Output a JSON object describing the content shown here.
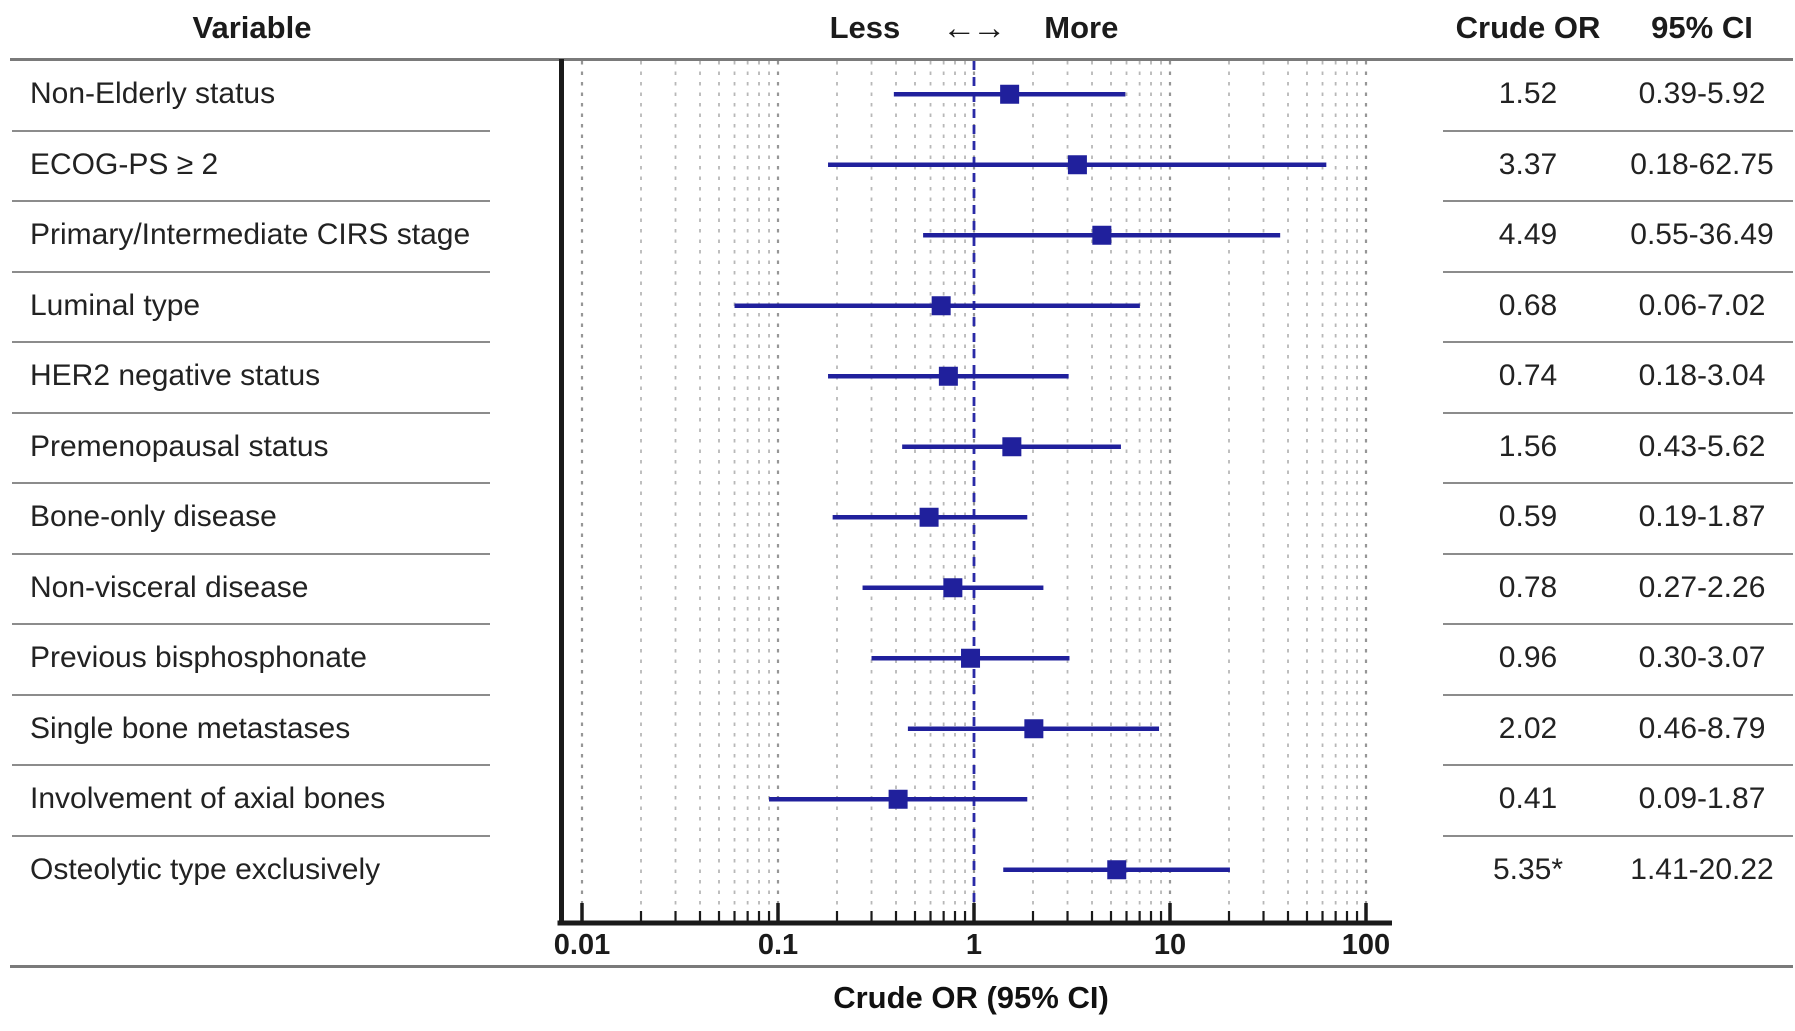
{
  "header": {
    "variable_col": "Variable",
    "less_label": "Less",
    "arrows": "←→",
    "more_label": "More",
    "crude_or_col": "Crude OR",
    "ci_col": "95% CI"
  },
  "chart_data": {
    "type": "scatter",
    "variant": "forest-plot",
    "xlabel": "Crude OR (95% CI)",
    "xscale": "log",
    "xlim": [
      0.01,
      100
    ],
    "xticks": [
      0.01,
      0.1,
      1,
      10,
      100
    ],
    "xtick_labels": [
      "0.01",
      "0.1",
      "1",
      "10",
      "100"
    ],
    "reference_line": 1,
    "grid": "dashed-vertical-log-minor-and-major",
    "legend_position": "none",
    "rows": [
      {
        "variable": "Non-Elderly status",
        "or": 1.52,
        "ci_low": 0.39,
        "ci_high": 5.92,
        "or_label": "1.52",
        "ci_label": "0.39-5.92"
      },
      {
        "variable": "ECOG-PS ≥ 2",
        "or": 3.37,
        "ci_low": 0.18,
        "ci_high": 62.75,
        "or_label": "3.37",
        "ci_label": "0.18-62.75"
      },
      {
        "variable": "Primary/Intermediate CIRS stage",
        "or": 4.49,
        "ci_low": 0.55,
        "ci_high": 36.49,
        "or_label": "4.49",
        "ci_label": "0.55-36.49"
      },
      {
        "variable": "Luminal type",
        "or": 0.68,
        "ci_low": 0.06,
        "ci_high": 7.02,
        "or_label": "0.68",
        "ci_label": "0.06-7.02"
      },
      {
        "variable": "HER2 negative status",
        "or": 0.74,
        "ci_low": 0.18,
        "ci_high": 3.04,
        "or_label": "0.74",
        "ci_label": "0.18-3.04"
      },
      {
        "variable": "Premenopausal status",
        "or": 1.56,
        "ci_low": 0.43,
        "ci_high": 5.62,
        "or_label": "1.56",
        "ci_label": "0.43-5.62"
      },
      {
        "variable": "Bone-only disease",
        "or": 0.59,
        "ci_low": 0.19,
        "ci_high": 1.87,
        "or_label": "0.59",
        "ci_label": "0.19-1.87"
      },
      {
        "variable": "Non-visceral disease",
        "or": 0.78,
        "ci_low": 0.27,
        "ci_high": 2.26,
        "or_label": "0.78",
        "ci_label": "0.27-2.26"
      },
      {
        "variable": "Previous bisphosphonate",
        "or": 0.96,
        "ci_low": 0.3,
        "ci_high": 3.07,
        "or_label": "0.96",
        "ci_label": "0.30-3.07"
      },
      {
        "variable": "Single bone metastases",
        "or": 2.02,
        "ci_low": 0.46,
        "ci_high": 8.79,
        "or_label": "2.02",
        "ci_label": "0.46-8.79"
      },
      {
        "variable": "Involvement of axial bones",
        "or": 0.41,
        "ci_low": 0.09,
        "ci_high": 1.87,
        "or_label": "0.41",
        "ci_label": "0.09-1.87"
      },
      {
        "variable": "Osteolytic type exclusively",
        "or": 5.35,
        "ci_low": 1.41,
        "ci_high": 20.22,
        "or_label": "5.35*",
        "ci_label": "1.41-20.22"
      }
    ]
  },
  "colors": {
    "marker_blue": "#20209c",
    "reference_line_blue": "#2a2aa6",
    "grid_minor": "#b8b8b8",
    "grid_major": "#969696",
    "axis_black": "#1a1a1a",
    "separator_gray": "#8c8c8c",
    "frame_gray": "#7a7a7a"
  }
}
